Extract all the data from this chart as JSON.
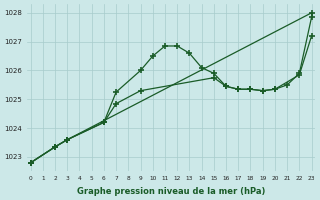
{
  "xlabel": "Graphe pression niveau de la mer (hPa)",
  "bg_color": "#cce8e8",
  "grid_color": "#a8cccc",
  "line_color": "#1a5c28",
  "ylim": [
    1022.5,
    1028.3
  ],
  "yticks": [
    1023,
    1024,
    1025,
    1026,
    1027,
    1028
  ],
  "xlim": [
    -0.3,
    23.3
  ],
  "x_ticks": [
    0,
    1,
    2,
    3,
    4,
    5,
    6,
    7,
    8,
    9,
    10,
    11,
    12,
    13,
    14,
    15,
    16,
    17,
    18,
    19,
    20,
    21,
    22,
    23
  ],
  "series1": {
    "x": [
      0,
      2,
      3,
      6,
      7,
      9,
      10,
      11,
      12,
      13,
      14,
      15,
      16,
      17,
      18,
      19,
      20,
      22,
      23
    ],
    "y": [
      1022.8,
      1023.35,
      1023.6,
      1024.2,
      1025.25,
      1026.0,
      1026.5,
      1026.85,
      1026.85,
      1026.6,
      1026.1,
      1025.9,
      1025.45,
      1025.35,
      1025.35,
      1025.3,
      1025.35,
      1025.85,
      1027.2
    ]
  },
  "series2": {
    "x": [
      0,
      2,
      3,
      23
    ],
    "y": [
      1022.8,
      1023.35,
      1023.6,
      1028.0
    ]
  },
  "series3": {
    "x": [
      0,
      2,
      3,
      6,
      7,
      9,
      15,
      16,
      17,
      18,
      19,
      20,
      21,
      22,
      23
    ],
    "y": [
      1022.8,
      1023.35,
      1023.6,
      1024.2,
      1024.85,
      1025.3,
      1025.75,
      1025.45,
      1025.35,
      1025.35,
      1025.3,
      1025.35,
      1025.5,
      1025.9,
      1027.85
    ]
  }
}
